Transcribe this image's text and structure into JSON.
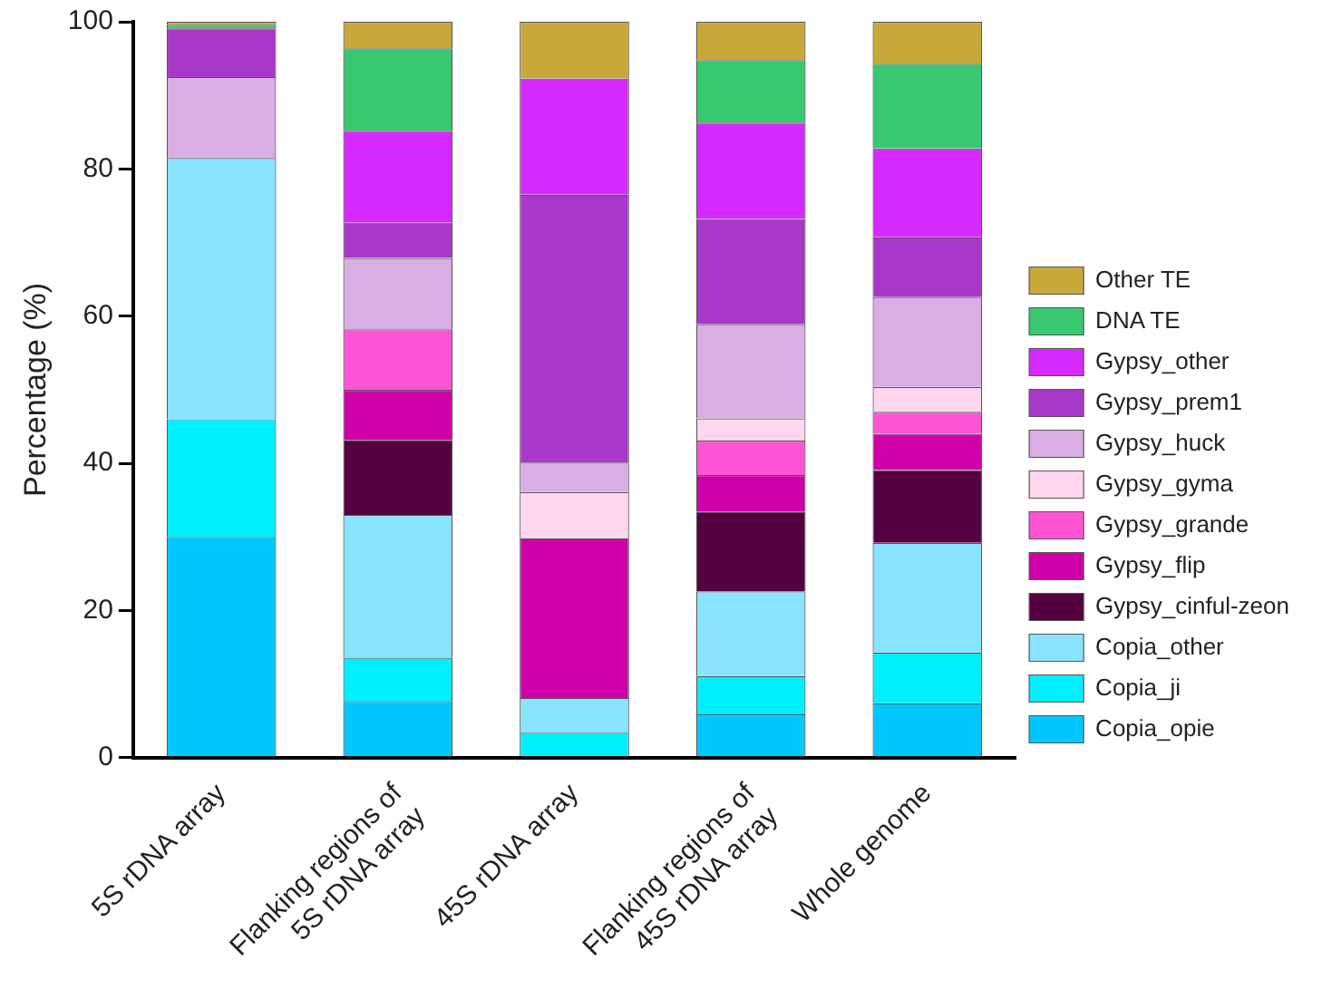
{
  "chart_data": {
    "type": "bar",
    "stacked": true,
    "ylabel": "Percentage (%)",
    "categories": [
      "5S rDNA array",
      "Flanking regions of 5S rDNA array",
      "45S rDNA array",
      "Flanking regions of 45S rDNA array",
      "Whole genome"
    ],
    "ylim": [
      0,
      100
    ],
    "yticks": [
      0,
      20,
      40,
      60,
      80,
      100
    ],
    "grid": false,
    "legend": "right",
    "series": [
      {
        "name": "Copia_opie",
        "color": "#00c8ff",
        "values": [
          30,
          7.7,
          0,
          5.9,
          7.4
        ]
      },
      {
        "name": "Copia_ji",
        "color": "#00f0ff",
        "values": [
          16,
          5.9,
          3.4,
          5.2,
          6.9
        ]
      },
      {
        "name": "Copia_other",
        "color": "#88e4ff",
        "values": [
          35.5,
          19.4,
          4.7,
          11.5,
          14.9
        ]
      },
      {
        "name": "Gypsy_cinful-zeon",
        "color": "#550040",
        "values": [
          0,
          10.2,
          0,
          10.8,
          9.9
        ]
      },
      {
        "name": "Gypsy_flip",
        "color": "#d000a8",
        "values": [
          0,
          6.8,
          21.7,
          5.0,
          4.9
        ]
      },
      {
        "name": "Gypsy_grande",
        "color": "#ff55d5",
        "values": [
          0,
          8.2,
          0,
          4.7,
          3.0
        ]
      },
      {
        "name": "Gypsy_gyma",
        "color": "#ffd6ee",
        "values": [
          0,
          0,
          6.3,
          3.0,
          3.4
        ]
      },
      {
        "name": "Gypsy_huck",
        "color": "#d8aee4",
        "values": [
          11,
          9.7,
          4.0,
          12.8,
          12.2
        ]
      },
      {
        "name": "Gypsy_prem1",
        "color": "#a838c8",
        "values": [
          6.6,
          4.8,
          36.4,
          14.3,
          8.1
        ]
      },
      {
        "name": "Gypsy_other",
        "color": "#d42aff",
        "values": [
          0,
          12.5,
          15.8,
          13.1,
          12.1
        ]
      },
      {
        "name": "DNA TE",
        "color": "#38c870",
        "values": [
          0.5,
          11.2,
          0,
          8.5,
          11.5
        ]
      },
      {
        "name": "Other TE",
        "color": "#c8a838",
        "values": [
          0.4,
          3.6,
          7.7,
          5.2,
          5.7
        ]
      }
    ]
  }
}
